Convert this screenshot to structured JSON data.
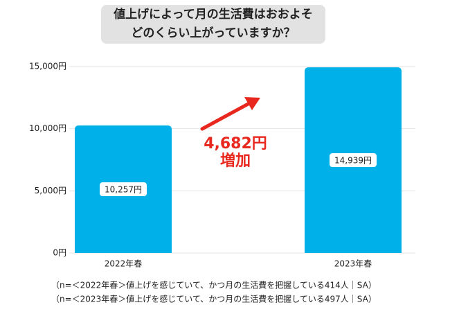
{
  "chart_data": {
    "type": "bar",
    "title": [
      "値上げによって月の生活費はおおよそ",
      "どのくらい上がっていますか？"
    ],
    "categories": [
      "2022年春",
      "2023年春"
    ],
    "values": [
      10257,
      14939
    ],
    "value_labels": [
      "10,257円",
      "14,939円"
    ],
    "color": "#00b0e8",
    "ylim": [
      0,
      15000
    ],
    "yticks": [
      {
        "value": 0,
        "label": "0円"
      },
      {
        "value": 5000,
        "label": "5,000円"
      },
      {
        "value": 10000,
        "label": "10,000円"
      },
      {
        "value": 15000,
        "label": "15,000円"
      }
    ],
    "grid": true,
    "annotations": [
      "4,682円",
      "増加"
    ],
    "notes": [
      "（n=＜2022年春＞値上げを感じていて、かつ月の生活費を把握している414人｜SA）",
      "（n=＜2023年春＞値上げを感じていて、かつ月の生活費を把握している497人｜SA）"
    ]
  }
}
